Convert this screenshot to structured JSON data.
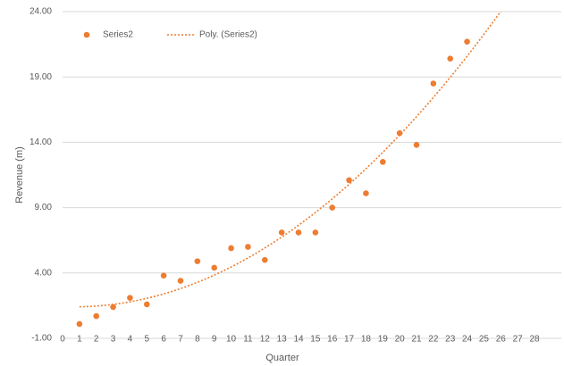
{
  "chart_data": {
    "type": "scatter",
    "x_label": "Quarter",
    "y_label": "Revenue (m)",
    "series": [
      {
        "name": "Series2",
        "color": "#ed7d31",
        "x": [
          1,
          2,
          3,
          4,
          5,
          6,
          7,
          8,
          9,
          10,
          11,
          12,
          13,
          14,
          15,
          16,
          17,
          18,
          19,
          20,
          21,
          22,
          23,
          24
        ],
        "values": [
          0.1,
          0.7,
          1.4,
          2.1,
          1.6,
          3.8,
          3.4,
          4.9,
          4.4,
          5.9,
          6.0,
          5.0,
          7.1,
          7.1,
          7.1,
          9.0,
          11.1,
          10.1,
          12.5,
          14.7,
          13.8,
          18.5,
          20.4,
          21.7
        ]
      }
    ],
    "trendline": {
      "name": "Poly. (Series2)",
      "order": 2,
      "color": "#ed7d31"
    },
    "xlim": [
      0,
      28
    ],
    "xticks": [
      0,
      1,
      2,
      3,
      4,
      5,
      6,
      7,
      8,
      9,
      10,
      11,
      12,
      13,
      14,
      15,
      16,
      17,
      18,
      19,
      20,
      21,
      22,
      23,
      24,
      25,
      26,
      27,
      28
    ],
    "ylim": [
      -1,
      24
    ],
    "yticks": [
      {
        "value": -1,
        "label": "-1.00"
      },
      {
        "value": 4,
        "label": "4.00"
      },
      {
        "value": 9,
        "label": "9.00"
      },
      {
        "value": 14,
        "label": "14.00"
      },
      {
        "value": 19,
        "label": "19.00"
      },
      {
        "value": 24,
        "label": "24.00"
      }
    ],
    "grid": true,
    "legend": "top-left"
  }
}
